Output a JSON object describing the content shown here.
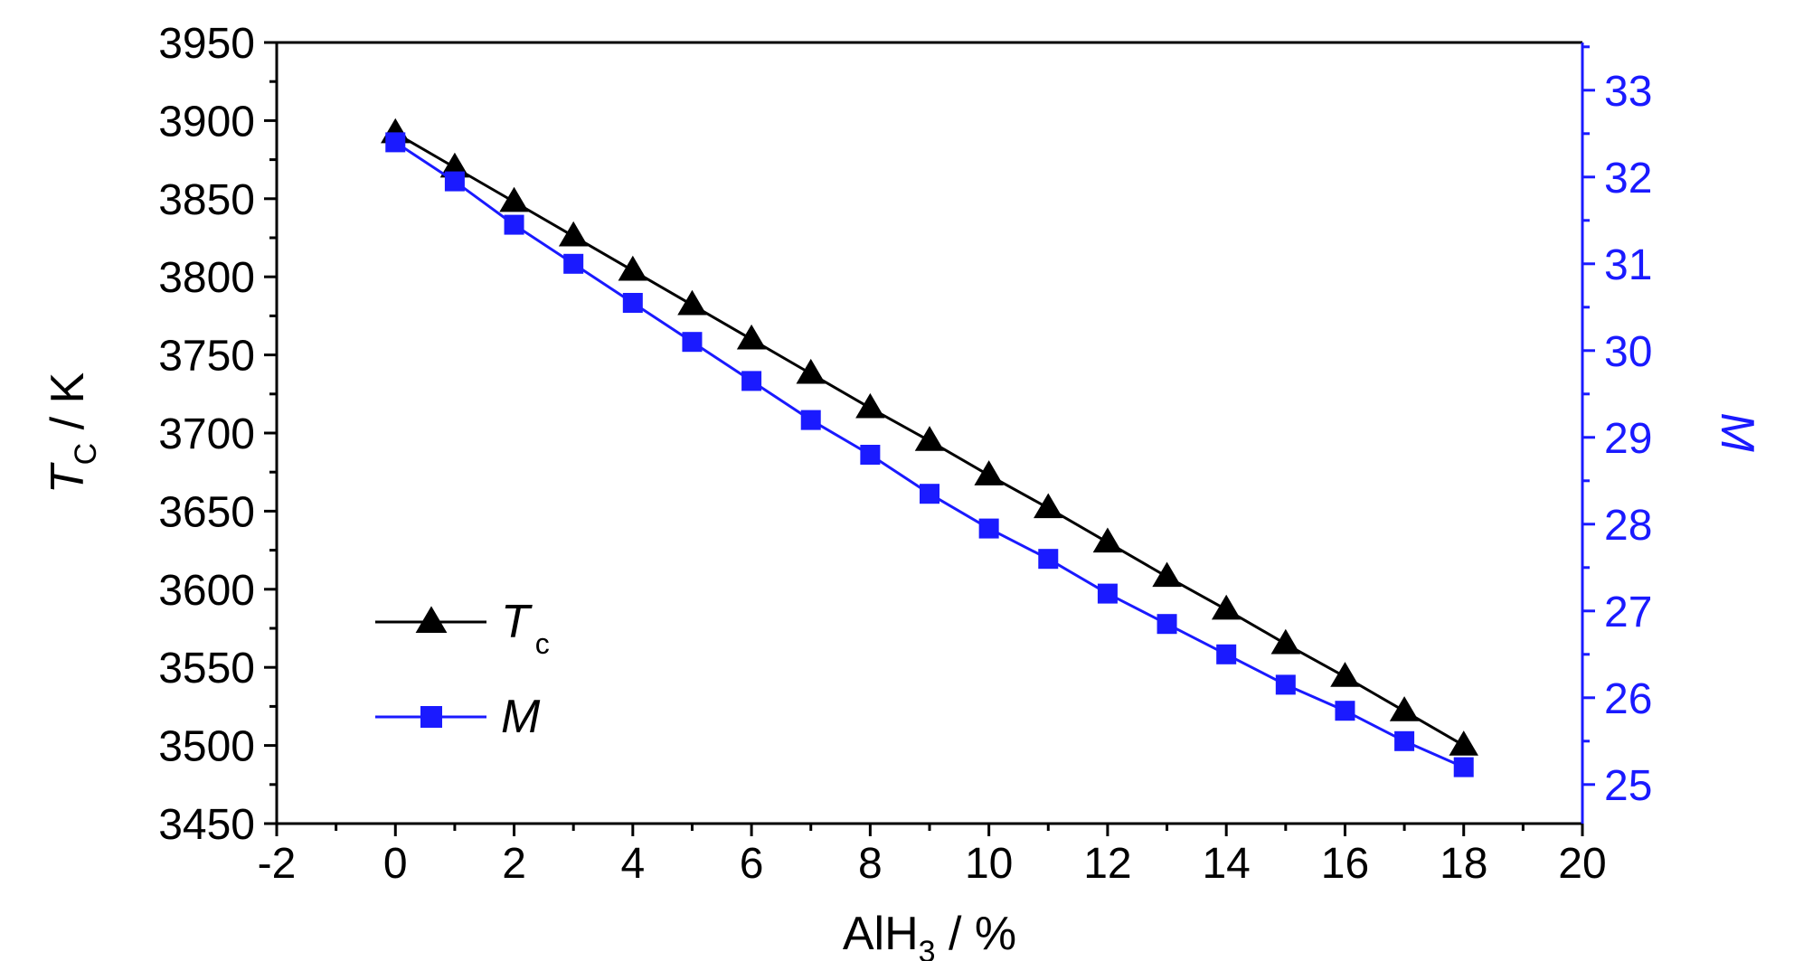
{
  "chart_data": {
    "type": "line",
    "x_axis": {
      "label_main": "AlH",
      "label_sub": "3",
      "label_rest": " / %",
      "min": -2,
      "max": 20,
      "ticks": [
        -2,
        0,
        2,
        4,
        6,
        8,
        10,
        12,
        14,
        16,
        18,
        20
      ]
    },
    "y_left": {
      "label_symbol": "T",
      "label_sub": "C",
      "label_rest": " / K",
      "min": 3450,
      "max": 3950,
      "ticks": [
        3450,
        3500,
        3550,
        3600,
        3650,
        3700,
        3750,
        3800,
        3850,
        3900,
        3950
      ],
      "color": "#000000"
    },
    "y_right": {
      "label": "M",
      "min": 24.55,
      "max": 33.55,
      "ticks": [
        25,
        26,
        27,
        28,
        29,
        30,
        31,
        32,
        33
      ],
      "color": "#1a1aff"
    },
    "x": [
      0,
      1,
      2,
      3,
      4,
      5,
      6,
      7,
      8,
      9,
      10,
      11,
      12,
      13,
      14,
      15,
      16,
      17,
      18
    ],
    "series": [
      {
        "name_symbol": "T",
        "name_sub": "c",
        "axis": "left",
        "marker": "triangle",
        "color": "#000000",
        "values": [
          3892,
          3870,
          3848,
          3826,
          3804,
          3782,
          3760,
          3738,
          3716,
          3695,
          3673,
          3652,
          3630,
          3608,
          3587,
          3565,
          3544,
          3522,
          3500
        ]
      },
      {
        "name_symbol": "M",
        "axis": "right",
        "marker": "square",
        "color": "#1a1aff",
        "values": [
          32.4,
          31.95,
          31.45,
          31.0,
          30.55,
          30.1,
          29.65,
          29.2,
          28.8,
          28.35,
          27.95,
          27.6,
          27.2,
          26.85,
          26.5,
          26.15,
          25.85,
          25.5,
          25.2
        ]
      }
    ],
    "legend_position": "bottom-left",
    "grid": false
  }
}
